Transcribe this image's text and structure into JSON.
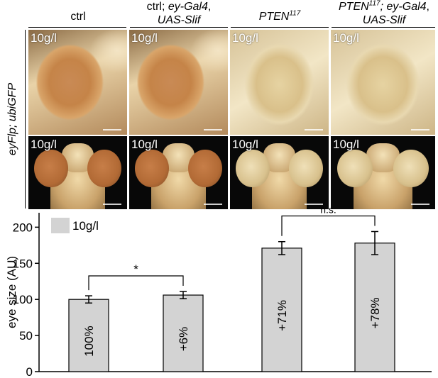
{
  "columns": [
    {
      "line1": "ctrl",
      "line2": ""
    },
    {
      "line1a": "ctrl; ",
      "line1b": "ey-Gal4",
      "line1c": ",",
      "line2": "UAS-Slif"
    },
    {
      "base": "PTEN",
      "sup": "117",
      "line2": ""
    },
    {
      "base": "PTEN",
      "sup": "117",
      "rest": "; ey-Gal4",
      "rest_comma": ",",
      "line2": "UAS-Slif"
    }
  ],
  "row_label": "eyFlp; ubiGFP",
  "panel_tag": "10g/l",
  "colors": {
    "bar_fill": "#d3d3d3",
    "panel_background": "#080808",
    "axis": "#000000"
  },
  "chart_data": {
    "type": "bar",
    "categories": [
      "ctrl",
      "ctrl; ey-Gal4, UAS-Slif",
      "PTEN117",
      "PTEN117; ey-Gal4, UAS-Slif"
    ],
    "series": [
      {
        "name": "10g/l",
        "values": [
          100,
          106,
          171,
          178
        ],
        "errors": [
          5,
          5,
          9,
          16
        ],
        "labels": [
          "100%",
          "+6%",
          "+71%",
          "+78%"
        ]
      }
    ],
    "ylabel": "eye size (AU)",
    "xlabel": "",
    "ylim": [
      0,
      220
    ],
    "yticks": [
      0,
      50,
      100,
      150,
      200
    ],
    "legend": {
      "label": "10g/l",
      "placement": "top-left"
    },
    "significance": [
      {
        "from": 0,
        "to": 1,
        "label": "*"
      },
      {
        "from": 2,
        "to": 3,
        "label": "n.s."
      }
    ],
    "grid": false
  }
}
